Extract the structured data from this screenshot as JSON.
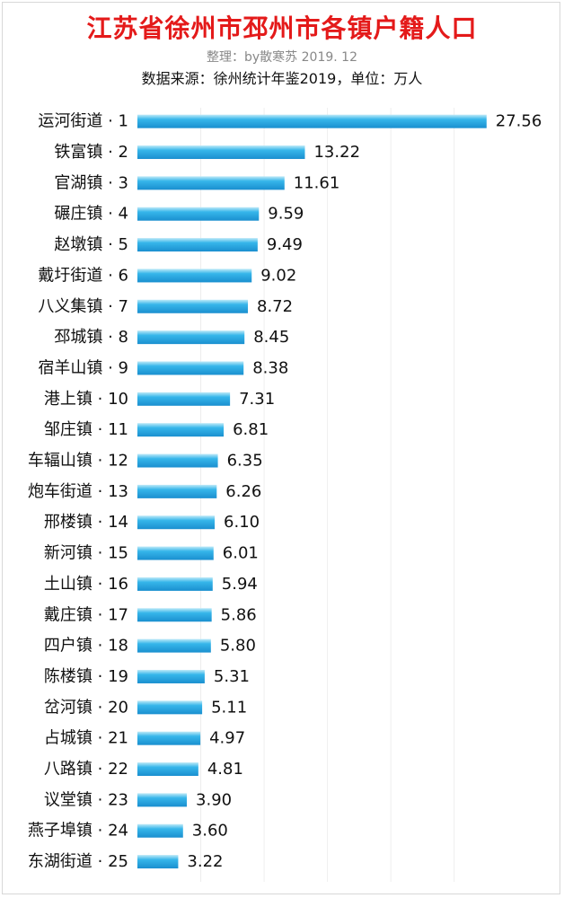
{
  "header": {
    "title": "江苏省徐州市邳州市各镇户籍人口",
    "subtitle": "整理：by散寒苏 2019. 12",
    "source": "数据来源：徐州统计年鉴2019，单位：万人"
  },
  "colors": {
    "title": "#e41a1a",
    "bar_light": "#bfeaf8",
    "bar_mid": "#36b6ea",
    "bar_dark": "#1a8fcf",
    "gridline": "#eeeeee"
  },
  "chart_data": {
    "type": "bar",
    "orientation": "horizontal",
    "title": "江苏省徐州市邳州市各镇户籍人口",
    "xlabel": "",
    "ylabel": "",
    "xlim": [
      0,
      28
    ],
    "grid": "vertical",
    "legend": "none",
    "categories": [
      "运河街道 · 1",
      "铁富镇 · 2",
      "官湖镇 · 3",
      "碾庄镇 · 4",
      "赵墩镇 · 5",
      "戴圩街道 · 6",
      "八义集镇 · 7",
      "邳城镇 · 8",
      "宿羊山镇 · 9",
      "港上镇 · 10",
      "邹庄镇 · 11",
      "车辐山镇 · 12",
      "炮车街道 · 13",
      "邢楼镇 · 14",
      "新河镇 · 15",
      "土山镇 · 16",
      "戴庄镇 · 17",
      "四户镇 · 18",
      "陈楼镇 · 19",
      "岔河镇 · 20",
      "占城镇 · 21",
      "八路镇 · 22",
      "议堂镇 · 23",
      "燕子埠镇 · 24",
      "东湖街道 · 25"
    ],
    "values": [
      27.56,
      13.22,
      11.61,
      9.59,
      9.49,
      9.02,
      8.72,
      8.45,
      8.38,
      7.31,
      6.81,
      6.35,
      6.26,
      6.1,
      6.01,
      5.94,
      5.86,
      5.8,
      5.31,
      5.11,
      4.97,
      4.81,
      3.9,
      3.6,
      3.22
    ],
    "value_labels": [
      "27.56",
      "13.22",
      "11.61",
      "9.59",
      "9.49",
      "9.02",
      "8.72",
      "8.45",
      "8.38",
      "7.31",
      "6.81",
      "6.35",
      "6.26",
      "6.10",
      "6.01",
      "5.94",
      "5.86",
      "5.80",
      "5.31",
      "5.11",
      "4.97",
      "4.81",
      "3.90",
      "3.60",
      "3.22"
    ]
  }
}
